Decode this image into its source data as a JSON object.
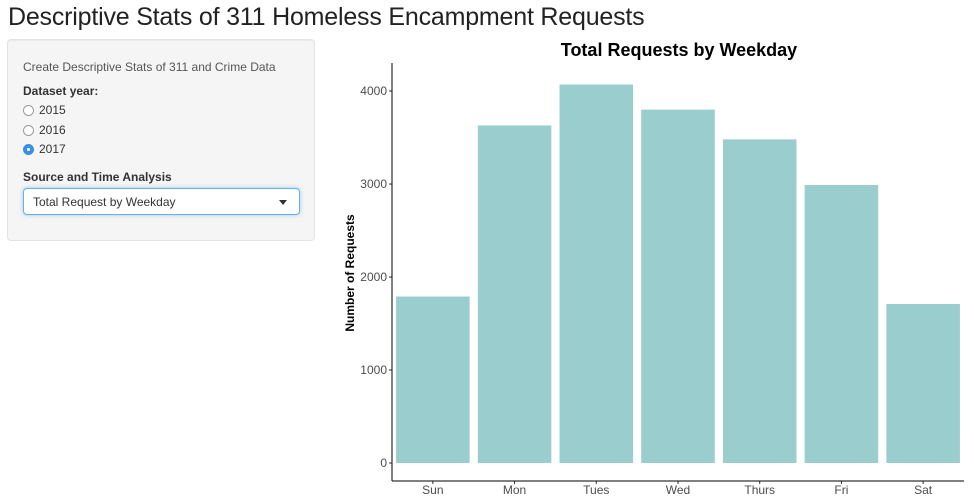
{
  "page": {
    "title": "Descriptive Stats of 311 Homeless Encampment Requests"
  },
  "sidebar": {
    "description": "Create Descriptive Stats of 311 and Crime Data",
    "year_label": "Dataset year:",
    "year_options": [
      {
        "label": "2015",
        "checked": false
      },
      {
        "label": "2016",
        "checked": false
      },
      {
        "label": "2017",
        "checked": true
      }
    ],
    "analysis_label": "Source and Time Analysis",
    "analysis_selected": "Total Request by Weekday"
  },
  "colors": {
    "bar_fill": "#99cdce",
    "accent": "#3b8fe0"
  },
  "chart_data": {
    "type": "bar",
    "title": "Total Requests by Weekday",
    "xlabel": "",
    "ylabel": "Number of Requests",
    "categories": [
      "Sun",
      "Mon",
      "Tues",
      "Wed",
      "Thurs",
      "Fri",
      "Sat"
    ],
    "values": [
      1790,
      3630,
      4070,
      3800,
      3480,
      2990,
      1710
    ],
    "y_ticks": [
      0,
      1000,
      2000,
      3000,
      4000
    ],
    "ylim": [
      0,
      4280
    ],
    "grid": false,
    "legend": "none"
  }
}
